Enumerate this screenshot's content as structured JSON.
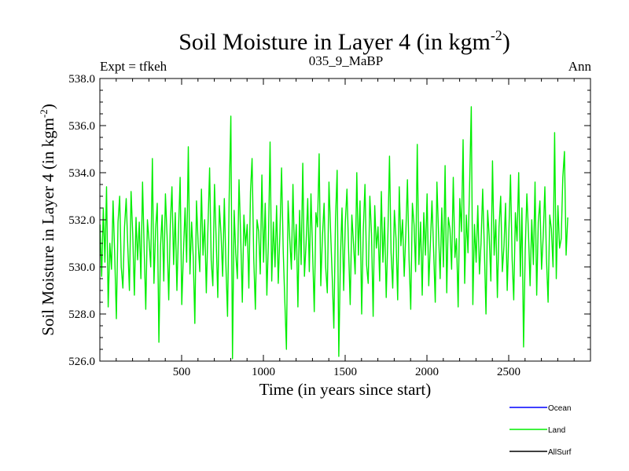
{
  "chart_data": {
    "type": "line",
    "title": "Soil Moisture in Layer 4 (in kgm",
    "title_sup": "-2",
    "title_close": ")",
    "subtitle_left": "Expt = tfkeh",
    "subtitle_center": "035_9_MaBP",
    "subtitle_right": "Ann",
    "xlabel": "Time (in years since start)",
    "ylabel": "Soil Moisture in Layer 4 (in kgm",
    "ylabel_sup": "-2",
    "ylabel_close": ")",
    "xlim": [
      0,
      3000
    ],
    "ylim": [
      526.0,
      538.0
    ],
    "xticks": [
      500,
      1000,
      1500,
      2000,
      2500
    ],
    "yticks": [
      "526.0",
      "528.0",
      "530.0",
      "532.0",
      "534.0",
      "536.0",
      "538.0"
    ],
    "series": [
      {
        "name": "Ocean",
        "color": "#0000ff",
        "x": [],
        "y": []
      },
      {
        "name": "Land",
        "color": "#00ee00",
        "x_start": 1,
        "x_step": 10,
        "y": [
          531.8,
          529.6,
          532.5,
          530.2,
          533.4,
          528.3,
          531.0,
          529.9,
          532.8,
          530.5,
          527.8,
          531.9,
          533.0,
          530.0,
          529.1,
          531.7,
          532.9,
          530.8,
          529.0,
          533.2,
          531.4,
          528.8,
          532.1,
          530.3,
          531.9,
          529.5,
          533.6,
          530.7,
          528.2,
          532.0,
          531.1,
          530.0,
          534.6,
          529.3,
          531.6,
          532.7,
          526.8,
          530.9,
          532.2,
          529.4,
          533.1,
          531.3,
          528.6,
          531.8,
          533.4,
          530.1,
          532.3,
          529.0,
          531.5,
          533.8,
          528.4,
          530.6,
          532.5,
          530.2,
          535.1,
          529.7,
          531.9,
          530.4,
          527.6,
          532.8,
          531.0,
          529.8,
          533.3,
          530.5,
          532.0,
          528.9,
          531.7,
          534.2,
          530.3,
          529.2,
          533.5,
          531.2,
          528.7,
          532.6,
          531.4,
          529.6,
          532.9,
          530.0,
          527.9,
          533.0,
          536.4,
          526.1,
          532.4,
          530.6,
          529.5,
          533.7,
          531.3,
          528.5,
          532.2,
          530.9,
          531.8,
          529.1,
          533.2,
          534.6,
          530.4,
          528.2,
          532.0,
          531.5,
          529.7,
          533.9,
          530.2,
          532.7,
          528.8,
          531.1,
          535.3,
          529.4,
          531.9,
          530.0,
          532.6,
          529.3,
          531.4,
          534.2,
          530.7,
          528.6,
          526.5,
          532.8,
          531.2,
          529.9,
          533.5,
          530.3,
          531.8,
          528.3,
          532.4,
          530.1,
          534.4,
          529.6,
          531.0,
          532.9,
          529.8,
          533.1,
          530.6,
          528.1,
          532.3,
          531.7,
          534.8,
          529.2,
          531.3,
          532.7,
          530.0,
          528.9,
          533.6,
          531.5,
          529.5,
          527.4,
          532.0,
          534.1,
          526.2,
          530.4,
          532.5,
          529.0,
          531.9,
          533.3,
          530.7,
          528.4,
          532.2,
          531.0,
          529.7,
          534.0,
          530.5,
          532.8,
          528.0,
          531.6,
          533.5,
          530.1,
          529.3,
          533.0,
          531.4,
          527.9,
          532.6,
          530.8,
          531.7,
          529.4,
          533.2,
          530.2,
          532.1,
          528.7,
          531.3,
          534.7,
          530.6,
          529.1,
          532.4,
          531.2,
          528.6,
          533.4,
          530.9,
          532.0,
          529.6,
          531.5,
          533.7,
          530.3,
          528.2,
          532.7,
          531.8,
          529.8,
          535.2,
          530.1,
          531.9,
          528.8,
          532.3,
          530.5,
          533.1,
          529.2,
          531.0,
          532.8,
          530.7,
          528.5,
          533.6,
          531.4,
          529.5,
          532.5,
          530.0,
          534.3,
          528.9,
          532.1,
          531.6,
          529.9,
          533.8,
          530.4,
          531.2,
          528.3,
          532.9,
          531.5,
          535.4,
          529.3,
          532.2,
          530.6,
          533.5,
          536.8,
          528.4,
          531.8,
          530.2,
          532.6,
          529.7,
          531.0,
          533.3,
          530.8,
          528.0,
          532.4,
          531.3,
          529.4,
          534.5,
          530.5,
          532.0,
          528.7,
          531.7,
          533.0,
          529.8,
          530.9,
          532.7,
          529.0,
          531.5,
          533.9,
          530.3,
          528.6,
          532.3,
          531.1,
          534.0,
          529.6,
          532.5,
          526.6,
          530.7,
          533.1,
          531.4,
          529.2,
          532.0,
          530.1,
          533.6,
          528.8,
          531.9,
          532.8,
          529.9,
          531.3,
          533.4,
          530.4,
          528.5,
          532.2,
          531.6,
          530.0,
          535.7,
          529.5,
          532.6,
          530.8,
          531.2,
          533.8,
          534.9,
          530.5,
          532.1
        ]
      },
      {
        "name": "AllSurf",
        "color": "#000000",
        "x": [],
        "y": []
      }
    ],
    "legend_position": "bottom-right"
  }
}
